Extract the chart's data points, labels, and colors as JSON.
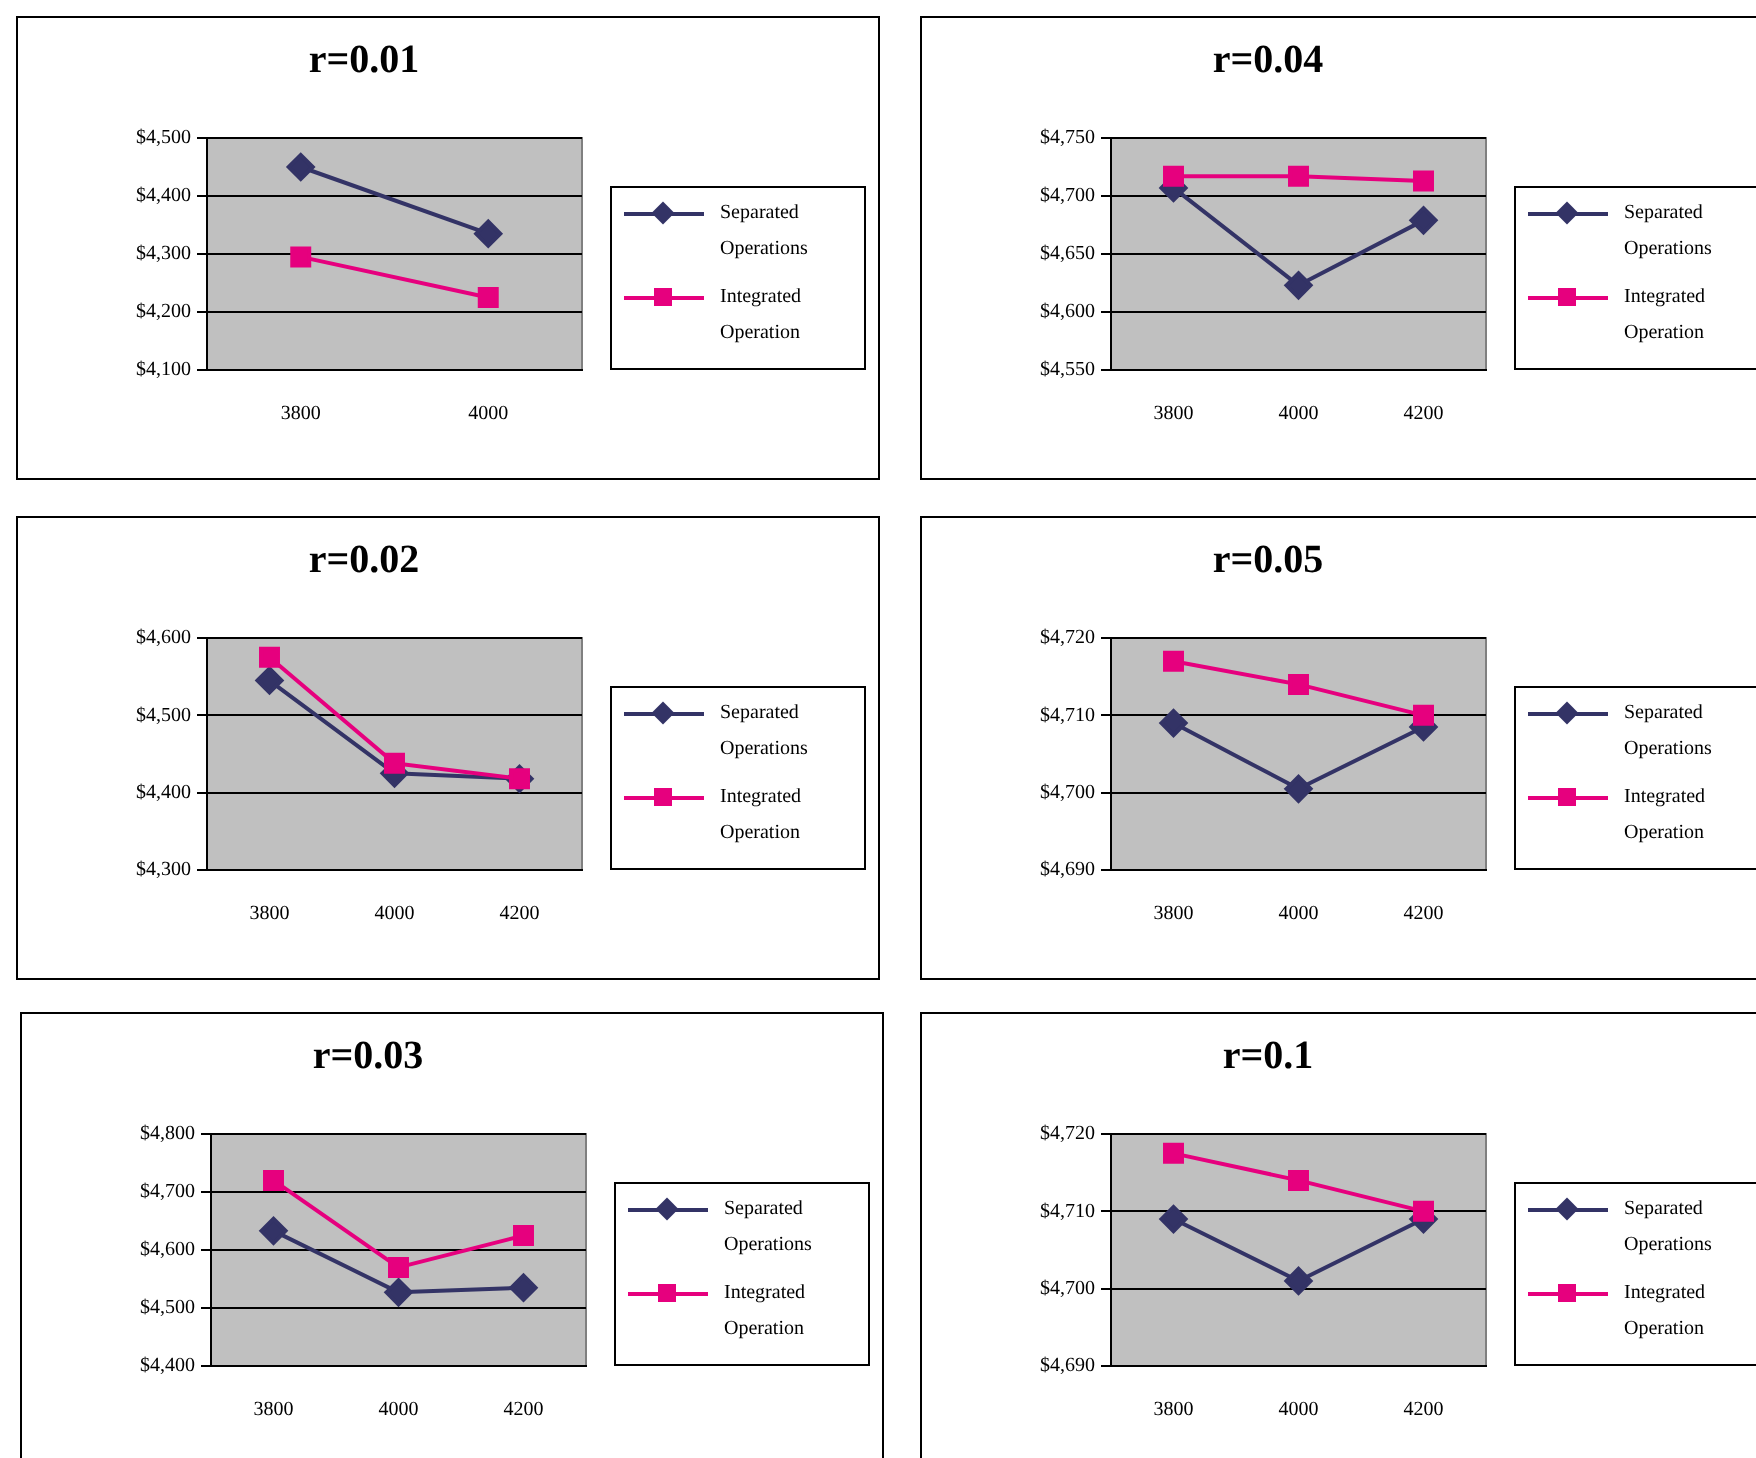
{
  "chart_data": [
    {
      "type": "line",
      "title": "r=0.01",
      "categories": [
        "3800",
        "4000"
      ],
      "series": [
        {
          "name": "Separated Operations",
          "color": "#333366",
          "marker": "diamond",
          "values": [
            4450,
            4335
          ]
        },
        {
          "name": "Integrated Operation",
          "color": "#e6007e",
          "marker": "square",
          "values": [
            4295,
            4225
          ]
        }
      ],
      "ylim": [
        4100,
        4500
      ],
      "yticks": [
        {
          "value": 4100,
          "label": "$4,100"
        },
        {
          "value": 4200,
          "label": "$4,200"
        },
        {
          "value": 4300,
          "label": "$4,300"
        },
        {
          "value": 4400,
          "label": "$4,400"
        },
        {
          "value": 4500,
          "label": "$4,500"
        }
      ],
      "grid": "y",
      "legend": "right"
    },
    {
      "type": "line",
      "title": "r=0.04",
      "categories": [
        "3800",
        "4000",
        "4200"
      ],
      "series": [
        {
          "name": "Separated Operations",
          "color": "#333366",
          "marker": "diamond",
          "values": [
            4707,
            4623,
            4679
          ]
        },
        {
          "name": "Integrated Operation",
          "color": "#e6007e",
          "marker": "square",
          "values": [
            4717,
            4717,
            4713
          ]
        }
      ],
      "ylim": [
        4550,
        4750
      ],
      "yticks": [
        {
          "value": 4550,
          "label": "$4,550"
        },
        {
          "value": 4600,
          "label": "$4,600"
        },
        {
          "value": 4650,
          "label": "$4,650"
        },
        {
          "value": 4700,
          "label": "$4,700"
        },
        {
          "value": 4750,
          "label": "$4,750"
        }
      ],
      "grid": "y",
      "legend": "right"
    },
    {
      "type": "line",
      "title": "r=0.02",
      "categories": [
        "3800",
        "4000",
        "4200"
      ],
      "series": [
        {
          "name": "Separated Operations",
          "color": "#333366",
          "marker": "diamond",
          "values": [
            4545,
            4425,
            4418
          ]
        },
        {
          "name": "Integrated Operation",
          "color": "#e6007e",
          "marker": "square",
          "values": [
            4575,
            4438,
            4418
          ]
        }
      ],
      "ylim": [
        4300,
        4600
      ],
      "yticks": [
        {
          "value": 4300,
          "label": "$4,300"
        },
        {
          "value": 4400,
          "label": "$4,400"
        },
        {
          "value": 4500,
          "label": "$4,500"
        },
        {
          "value": 4600,
          "label": "$4,600"
        }
      ],
      "grid": "y",
      "legend": "right"
    },
    {
      "type": "line",
      "title": "r=0.05",
      "categories": [
        "3800",
        "4000",
        "4200"
      ],
      "series": [
        {
          "name": "Separated Operations",
          "color": "#333366",
          "marker": "diamond",
          "values": [
            4709,
            4700.5,
            4708.5
          ]
        },
        {
          "name": "Integrated Operation",
          "color": "#e6007e",
          "marker": "square",
          "values": [
            4717,
            4714,
            4710
          ]
        }
      ],
      "ylim": [
        4690,
        4720
      ],
      "yticks": [
        {
          "value": 4690,
          "label": "$4,690"
        },
        {
          "value": 4700,
          "label": "$4,700"
        },
        {
          "value": 4710,
          "label": "$4,710"
        },
        {
          "value": 4720,
          "label": "$4,720"
        }
      ],
      "grid": "y",
      "legend": "right"
    },
    {
      "type": "line",
      "title": "r=0.03",
      "categories": [
        "3800",
        "4000",
        "4200"
      ],
      "series": [
        {
          "name": "Separated Operations",
          "color": "#333366",
          "marker": "diamond",
          "values": [
            4633,
            4527,
            4535
          ]
        },
        {
          "name": "Integrated Operation",
          "color": "#e6007e",
          "marker": "square",
          "values": [
            4720,
            4570,
            4625
          ]
        }
      ],
      "ylim": [
        4400,
        4800
      ],
      "yticks": [
        {
          "value": 4400,
          "label": "$4,400"
        },
        {
          "value": 4500,
          "label": "$4,500"
        },
        {
          "value": 4600,
          "label": "$4,600"
        },
        {
          "value": 4700,
          "label": "$4,700"
        },
        {
          "value": 4800,
          "label": "$4,800"
        }
      ],
      "grid": "y",
      "legend": "right"
    },
    {
      "type": "line",
      "title": "r=0.1",
      "categories": [
        "3800",
        "4000",
        "4200"
      ],
      "series": [
        {
          "name": "Separated Operations",
          "color": "#333366",
          "marker": "diamond",
          "values": [
            4709,
            4701,
            4709
          ]
        },
        {
          "name": "Integrated Operation",
          "color": "#e6007e",
          "marker": "square",
          "values": [
            4717.5,
            4714,
            4710
          ]
        }
      ],
      "ylim": [
        4690,
        4720
      ],
      "yticks": [
        {
          "value": 4690,
          "label": "$4,690"
        },
        {
          "value": 4700,
          "label": "$4,700"
        },
        {
          "value": 4710,
          "label": "$4,710"
        },
        {
          "value": 4720,
          "label": "$4,720"
        }
      ],
      "grid": "y",
      "legend": "right"
    }
  ]
}
